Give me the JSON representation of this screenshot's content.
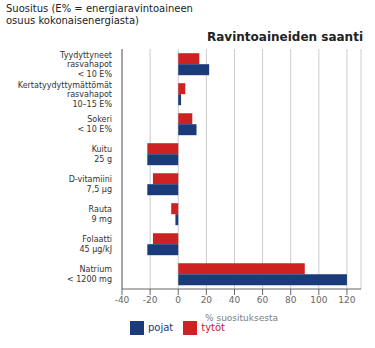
{
  "chart_data": {
    "type": "bar",
    "orientation": "horizontal",
    "title": "Ravintoaineiden saanti",
    "subtitle": "Suositus (E% = energiaravintoaineen\nosuus kokonaisenergiasta)",
    "xlabel": "% suosituksesta",
    "categories": [
      "Tyydyttyneet\nrasvahapot\n< 10 E%",
      "Kertatyydyttymättömät\nrasvahapot\n10–15 E%",
      "Sokeri\n< 10 E%",
      "Kuitu\n25 g",
      "D-vitamiini\n7,5 μg",
      "Rauta\n9 mg",
      "Folaatti\n45 μg/kJ",
      "Natrium\n< 1200 mg"
    ],
    "series": [
      {
        "name": "tytöt",
        "color": "#cc2222",
        "values": [
          15,
          5,
          10,
          -22,
          -18,
          -5,
          -18,
          90
        ]
      },
      {
        "name": "pojat",
        "color": "#1a3a7a",
        "values": [
          22,
          2,
          13,
          -22,
          -22,
          -2,
          -22,
          120
        ]
      }
    ],
    "xlim": [
      -40,
      130
    ],
    "xticks": [
      -40,
      -20,
      0,
      20,
      40,
      60,
      80,
      100,
      120
    ],
    "grid": true,
    "legend": "bottom"
  }
}
